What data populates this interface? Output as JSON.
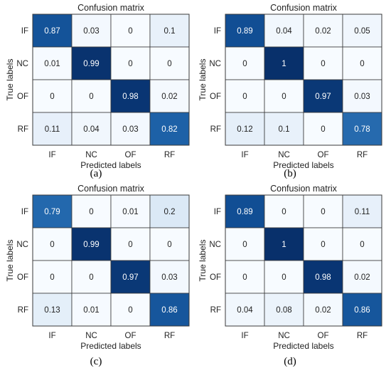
{
  "chart_data": [
    {
      "type": "heatmap",
      "panel": "(a)",
      "title": "Confusion matrix",
      "xlabel": "Predicted labels",
      "ylabel": "True labels",
      "x": [
        "IF",
        "NC",
        "OF",
        "RF"
      ],
      "y": [
        "IF",
        "NC",
        "OF",
        "RF"
      ],
      "values": [
        [
          0.87,
          0.03,
          0,
          0.1
        ],
        [
          0.01,
          0.99,
          0,
          0
        ],
        [
          0,
          0,
          0.98,
          0.02
        ],
        [
          0.11,
          0.04,
          0.03,
          0.82
        ]
      ],
      "value_labels": [
        [
          "0.87",
          "0.03",
          "0",
          "0.1"
        ],
        [
          "0.01",
          "0.99",
          "0",
          "0"
        ],
        [
          "0",
          "0",
          "0.98",
          "0.02"
        ],
        [
          "0.11",
          "0.04",
          "0.03",
          "0.82"
        ]
      ],
      "colormap": "Blues",
      "range": [
        0,
        1
      ]
    },
    {
      "type": "heatmap",
      "panel": "(b)",
      "title": "Confusion matrix",
      "xlabel": "Predicted labels",
      "ylabel": "True labels",
      "x": [
        "IF",
        "NC",
        "OF",
        "RF"
      ],
      "y": [
        "IF",
        "NC",
        "OF",
        "RF"
      ],
      "values": [
        [
          0.89,
          0.04,
          0.02,
          0.05
        ],
        [
          0,
          1,
          0,
          0
        ],
        [
          0,
          0,
          0.97,
          0.03
        ],
        [
          0.12,
          0.1,
          0,
          0.78
        ]
      ],
      "value_labels": [
        [
          "0.89",
          "0.04",
          "0.02",
          "0.05"
        ],
        [
          "0",
          "1",
          "0",
          "0"
        ],
        [
          "0",
          "0",
          "0.97",
          "0.03"
        ],
        [
          "0.12",
          "0.1",
          "0",
          "0.78"
        ]
      ],
      "colormap": "Blues",
      "range": [
        0,
        1
      ]
    },
    {
      "type": "heatmap",
      "panel": "(c)",
      "title": "Confusion matrix",
      "xlabel": "Predicted labels",
      "ylabel": "True labels",
      "x": [
        "IF",
        "NC",
        "OF",
        "RF"
      ],
      "y": [
        "IF",
        "NC",
        "OF",
        "RF"
      ],
      "values": [
        [
          0.79,
          0,
          0.01,
          0.2
        ],
        [
          0,
          0.99,
          0,
          0
        ],
        [
          0,
          0,
          0.97,
          0.03
        ],
        [
          0.13,
          0.01,
          0,
          0.86
        ]
      ],
      "value_labels": [
        [
          "0.79",
          "0",
          "0.01",
          "0.2"
        ],
        [
          "0",
          "0.99",
          "0",
          "0"
        ],
        [
          "0",
          "0",
          "0.97",
          "0.03"
        ],
        [
          "0.13",
          "0.01",
          "0",
          "0.86"
        ]
      ],
      "colormap": "Blues",
      "range": [
        0,
        1
      ]
    },
    {
      "type": "heatmap",
      "panel": "(d)",
      "title": "Confusion matrix",
      "xlabel": "Predicted labels",
      "ylabel": "True labels",
      "x": [
        "IF",
        "NC",
        "OF",
        "RF"
      ],
      "y": [
        "IF",
        "NC",
        "OF",
        "RF"
      ],
      "values": [
        [
          0.89,
          0,
          0,
          0.11
        ],
        [
          0,
          1,
          0,
          0
        ],
        [
          0,
          0,
          0.98,
          0.02
        ],
        [
          0.04,
          0.08,
          0.02,
          0.86
        ]
      ],
      "value_labels": [
        [
          "0.89",
          "0",
          "0",
          "0.11"
        ],
        [
          "0",
          "1",
          "0",
          "0"
        ],
        [
          "0",
          "0",
          "0.98",
          "0.02"
        ],
        [
          "0.04",
          "0.08",
          "0.02",
          "0.86"
        ]
      ],
      "colormap": "Blues",
      "range": [
        0,
        1
      ]
    }
  ]
}
